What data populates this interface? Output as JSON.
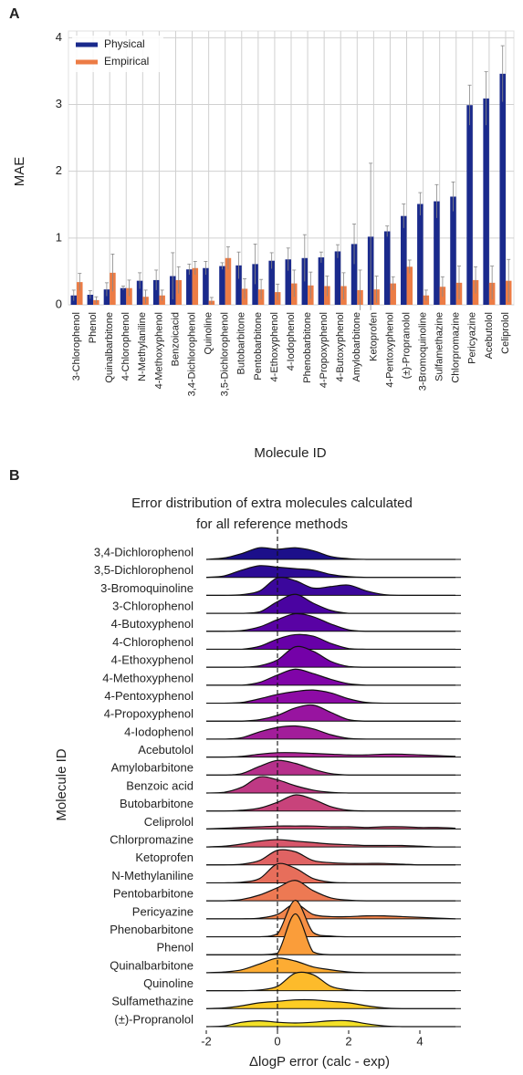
{
  "chart_data": [
    {
      "type": "bar",
      "panel": "A",
      "ylabel": "MAE",
      "xlabel": "Molecule ID",
      "categories": [
        "3-Chlorophenol",
        "Phenol",
        "Quinalbarbitone",
        "4-Chlorophenol",
        "N-Methylaniline",
        "4-Methoxyphenol",
        "Benzoicacid",
        "3,4-Dichlorophenol",
        "Quinoline",
        "3,5-Dichlorophenol",
        "Butobarbitone",
        "Pentobarbitone",
        "4-Ethoxyphenol",
        "4-Iodophenol",
        "Phenobarbitone",
        "4-Propoxyphenol",
        "4-Butoxyphenol",
        "Amylobarbitone",
        "Ketoprofen",
        "4-Pentoxyphenol",
        "(±)-Propranolol",
        "3-Bromoquinoline",
        "Sulfamethazine",
        "Chlorpromazine",
        "Pericyazine",
        "Acebutolol",
        "Celiprolol"
      ],
      "series": [
        {
          "name": "Physical",
          "color": "#1a2a8c",
          "values": [
            0.14,
            0.15,
            0.23,
            0.25,
            0.36,
            0.37,
            0.43,
            0.53,
            0.55,
            0.58,
            0.59,
            0.61,
            0.66,
            0.68,
            0.7,
            0.71,
            0.8,
            0.91,
            1.02,
            1.1,
            1.33,
            1.51,
            1.55,
            1.62,
            2.99,
            3.09,
            3.46
          ],
          "errors": [
            0.08,
            0.06,
            0.1,
            0.03,
            0.12,
            0.15,
            0.35,
            0.08,
            0.1,
            0.05,
            0.2,
            0.3,
            0.12,
            0.17,
            0.35,
            0.08,
            0.1,
            0.3,
            1.1,
            0.08,
            0.18,
            0.17,
            0.25,
            0.22,
            0.3,
            0.4,
            0.42
          ]
        },
        {
          "name": "Empirical",
          "color": "#ec7c45",
          "values": [
            0.34,
            0.07,
            0.48,
            0.25,
            0.12,
            0.14,
            0.37,
            0.55,
            0.06,
            0.7,
            0.24,
            0.23,
            0.19,
            0.32,
            0.29,
            0.28,
            0.28,
            0.22,
            0.23,
            0.32,
            0.57,
            0.14,
            0.27,
            0.33,
            0.37,
            0.33,
            0.36
          ],
          "errors": [
            0.13,
            0.05,
            0.28,
            0.12,
            0.1,
            0.08,
            0.2,
            0.1,
            0.05,
            0.17,
            0.15,
            0.15,
            0.12,
            0.2,
            0.2,
            0.15,
            0.2,
            0.3,
            0.2,
            0.1,
            0.1,
            0.08,
            0.15,
            0.25,
            0.2,
            0.25,
            0.32
          ]
        }
      ],
      "ylim": [
        0,
        4.1
      ],
      "yticks": [
        0,
        1,
        2,
        3,
        4
      ],
      "grid": true,
      "legend": "upper left"
    },
    {
      "type": "ridgeline",
      "panel": "B",
      "title": [
        "Error distribution of extra molecules calculated",
        "for all reference methods"
      ],
      "ylabel": "Molecule ID",
      "xlabel": "ΔlogP error (calc - exp)",
      "x": [
        -2,
        -1.5,
        -1,
        -0.5,
        0,
        0.5,
        1,
        1.5,
        2,
        2.5,
        3,
        3.5,
        4,
        4.5,
        5
      ],
      "xlim": [
        -2,
        5
      ],
      "xticks": [
        -2,
        0,
        2,
        4
      ],
      "reference_line": 0,
      "series": [
        {
          "name": "3,4-Dichlorophenol",
          "color": "#1c0f8a",
          "values": [
            0,
            0.1,
            0.4,
            0.8,
            0.7,
            0.8,
            0.6,
            0.2,
            0.05,
            0,
            0,
            0,
            0,
            0,
            0
          ]
        },
        {
          "name": "3,5-Dichlorophenol",
          "color": "#2c0b95",
          "values": [
            0,
            0.1,
            0.5,
            0.8,
            0.7,
            0.6,
            0.5,
            0.2,
            0.05,
            0,
            0,
            0,
            0,
            0,
            0
          ]
        },
        {
          "name": "3-Bromoquinoline",
          "color": "#3b079c",
          "values": [
            0,
            0,
            0.05,
            0.3,
            1.2,
            1.0,
            0.5,
            0.6,
            0.7,
            0.3,
            0.05,
            0,
            0,
            0,
            0
          ]
        },
        {
          "name": "3-Chlorophenol",
          "color": "#4a03a1",
          "values": [
            0,
            0,
            0,
            0.1,
            0.8,
            1.3,
            0.7,
            0.2,
            0,
            0,
            0,
            0,
            0,
            0,
            0
          ]
        },
        {
          "name": "4-Butoxyphenol",
          "color": "#5902a4",
          "values": [
            0,
            0,
            0.05,
            0.3,
            0.8,
            1.2,
            1.0,
            0.5,
            0.1,
            0,
            0,
            0,
            0,
            0,
            0
          ]
        },
        {
          "name": "4-Chlorophenol",
          "color": "#6700a8",
          "values": [
            0,
            0,
            0,
            0.2,
            0.7,
            1.0,
            0.9,
            0.4,
            0.05,
            0,
            0,
            0,
            0,
            0,
            0
          ]
        },
        {
          "name": "4-Ethoxyphenol",
          "color": "#7401a8",
          "values": [
            0,
            0,
            0,
            0.1,
            0.5,
            1.4,
            1.1,
            0.4,
            0.05,
            0,
            0,
            0,
            0,
            0,
            0
          ]
        },
        {
          "name": "4-Methoxyphenol",
          "color": "#8004a8",
          "values": [
            0,
            0,
            0,
            0.2,
            0.7,
            1.1,
            0.8,
            0.4,
            0.1,
            0,
            0,
            0,
            0,
            0,
            0
          ]
        },
        {
          "name": "4-Pentoxyphenol",
          "color": "#8d0ba5",
          "values": [
            0,
            0,
            0.05,
            0.3,
            0.6,
            0.8,
            0.9,
            0.7,
            0.3,
            0.05,
            0,
            0,
            0,
            0,
            0
          ]
        },
        {
          "name": "4-Propoxyphenol",
          "color": "#9814a0",
          "values": [
            0,
            0,
            0,
            0.1,
            0.4,
            0.9,
            1.1,
            0.6,
            0.1,
            0,
            0,
            0,
            0,
            0,
            0
          ]
        },
        {
          "name": "4-Iodophenol",
          "color": "#a21d9a",
          "values": [
            0,
            0,
            0.1,
            0.5,
            0.8,
            0.9,
            0.7,
            0.3,
            0.05,
            0,
            0,
            0,
            0,
            0,
            0
          ]
        },
        {
          "name": "Acebutolol",
          "color": "#ac2694",
          "values": [
            0,
            0,
            0.05,
            0.2,
            0.3,
            0.3,
            0.25,
            0.2,
            0.15,
            0.15,
            0.2,
            0.2,
            0.15,
            0.1,
            0.05
          ]
        },
        {
          "name": "Amylobarbitone",
          "color": "#b6308b",
          "values": [
            0,
            0,
            0.1,
            0.6,
            1.0,
            0.8,
            0.4,
            0.1,
            0,
            0,
            0,
            0,
            0,
            0,
            0
          ]
        },
        {
          "name": "Benzoic acid",
          "color": "#bf3984",
          "values": [
            0,
            0.05,
            0.4,
            1.1,
            0.9,
            0.5,
            0.2,
            0.05,
            0,
            0,
            0,
            0,
            0,
            0,
            0
          ]
        },
        {
          "name": "Butobarbitone",
          "color": "#c8437b",
          "values": [
            0,
            0,
            0.05,
            0.2,
            0.6,
            1.1,
            0.8,
            0.3,
            0.05,
            0,
            0,
            0,
            0,
            0,
            0
          ]
        },
        {
          "name": "Celiprolol",
          "color": "#d04d73",
          "values": [
            0,
            0.05,
            0.1,
            0.15,
            0.2,
            0.2,
            0.2,
            0.15,
            0.15,
            0.1,
            0.15,
            0.15,
            0.1,
            0.1,
            0.05
          ]
        },
        {
          "name": "Chlorpromazine",
          "color": "#d8576b",
          "values": [
            0,
            0.05,
            0.2,
            0.4,
            0.5,
            0.4,
            0.3,
            0.2,
            0.15,
            0.1,
            0.1,
            0.1,
            0.05,
            0,
            0
          ]
        },
        {
          "name": "Ketoprofen",
          "color": "#e06363",
          "values": [
            0,
            0,
            0.05,
            0.3,
            1.0,
            0.9,
            0.3,
            0.15,
            0.1,
            0.1,
            0.1,
            0.05,
            0,
            0,
            0
          ]
        },
        {
          "name": "N-Methylaniline",
          "color": "#e76e5b",
          "values": [
            0,
            0,
            0.05,
            0.3,
            1.3,
            1.0,
            0.3,
            0.05,
            0,
            0,
            0,
            0,
            0,
            0,
            0
          ]
        },
        {
          "name": "Pentobarbitone",
          "color": "#ed7953",
          "values": [
            0,
            0,
            0.1,
            0.4,
            0.9,
            1.4,
            0.7,
            0.2,
            0.05,
            0,
            0,
            0,
            0,
            0,
            0
          ]
        },
        {
          "name": "Pericyazine",
          "color": "#f2844b",
          "values": [
            0,
            0,
            0,
            0.05,
            0.3,
            1.0,
            0.3,
            0.15,
            0.15,
            0.2,
            0.2,
            0.15,
            0.1,
            0.05,
            0
          ]
        },
        {
          "name": "Phenobarbitone",
          "color": "#f79044",
          "values": [
            0,
            0,
            0,
            0,
            0.2,
            2.5,
            0.3,
            0.05,
            0,
            0,
            0,
            0,
            0,
            0,
            0
          ]
        },
        {
          "name": "Phenol",
          "color": "#fa9d3a",
          "values": [
            0,
            0,
            0,
            0,
            0.1,
            2.8,
            0.2,
            0,
            0,
            0,
            0,
            0,
            0,
            0,
            0
          ]
        },
        {
          "name": "Quinalbarbitone",
          "color": "#fdac33",
          "values": [
            0,
            0.05,
            0.2,
            0.6,
            1.0,
            0.8,
            0.4,
            0.2,
            0.05,
            0,
            0,
            0,
            0,
            0,
            0
          ]
        },
        {
          "name": "Quinoline",
          "color": "#fdbb2b",
          "values": [
            0,
            0,
            0,
            0.05,
            0.3,
            1.2,
            1.1,
            0.3,
            0.05,
            0,
            0,
            0,
            0,
            0,
            0
          ]
        },
        {
          "name": "Sulfamethazine",
          "color": "#fccd25",
          "values": [
            0,
            0.05,
            0.2,
            0.4,
            0.5,
            0.6,
            0.6,
            0.5,
            0.4,
            0.2,
            0.05,
            0,
            0,
            0,
            0
          ]
        },
        {
          "name": "(±)-Propranolol",
          "color": "#f3e128",
          "values": [
            0,
            0.05,
            0.3,
            0.4,
            0.3,
            0.25,
            0.3,
            0.4,
            0.4,
            0.2,
            0.05,
            0,
            0,
            0,
            0
          ]
        }
      ]
    }
  ]
}
